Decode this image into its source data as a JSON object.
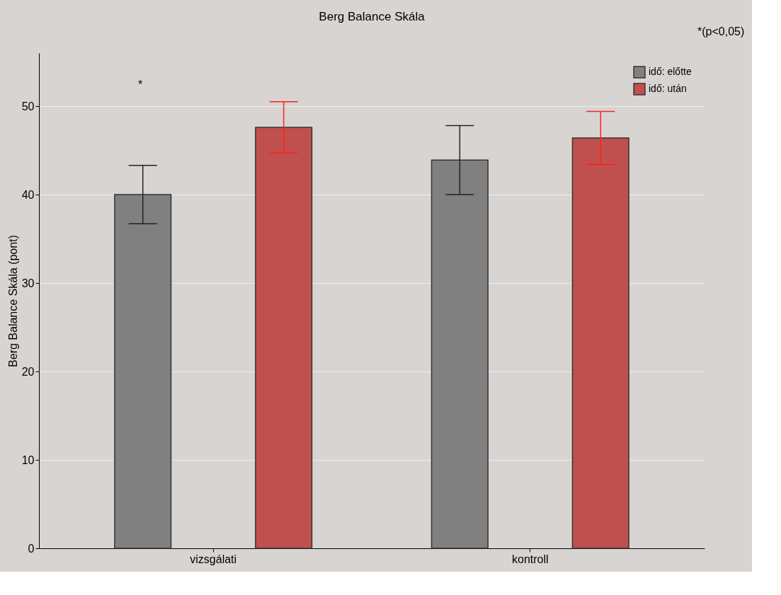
{
  "chart_data": {
    "type": "bar",
    "title": "Berg Balance Skála",
    "ylabel": "Berg Balance Skála (pont)",
    "categories": [
      "vizsgálati",
      "kontroll"
    ],
    "series": [
      {
        "name": "idő: előtte",
        "color": "#808080",
        "values": [
          40.0,
          43.9
        ],
        "errors": [
          3.3,
          3.9
        ]
      },
      {
        "name": "idő: után",
        "color": "#c0504d",
        "values": [
          47.6,
          46.4
        ],
        "errors": [
          2.9,
          3.0
        ]
      }
    ],
    "ylim": [
      0,
      56
    ],
    "yticks": [
      0,
      10,
      20,
      30,
      40,
      50
    ],
    "grid": "y",
    "legend": "top right",
    "annotations": [
      "*(p<0,05)",
      "*"
    ]
  }
}
